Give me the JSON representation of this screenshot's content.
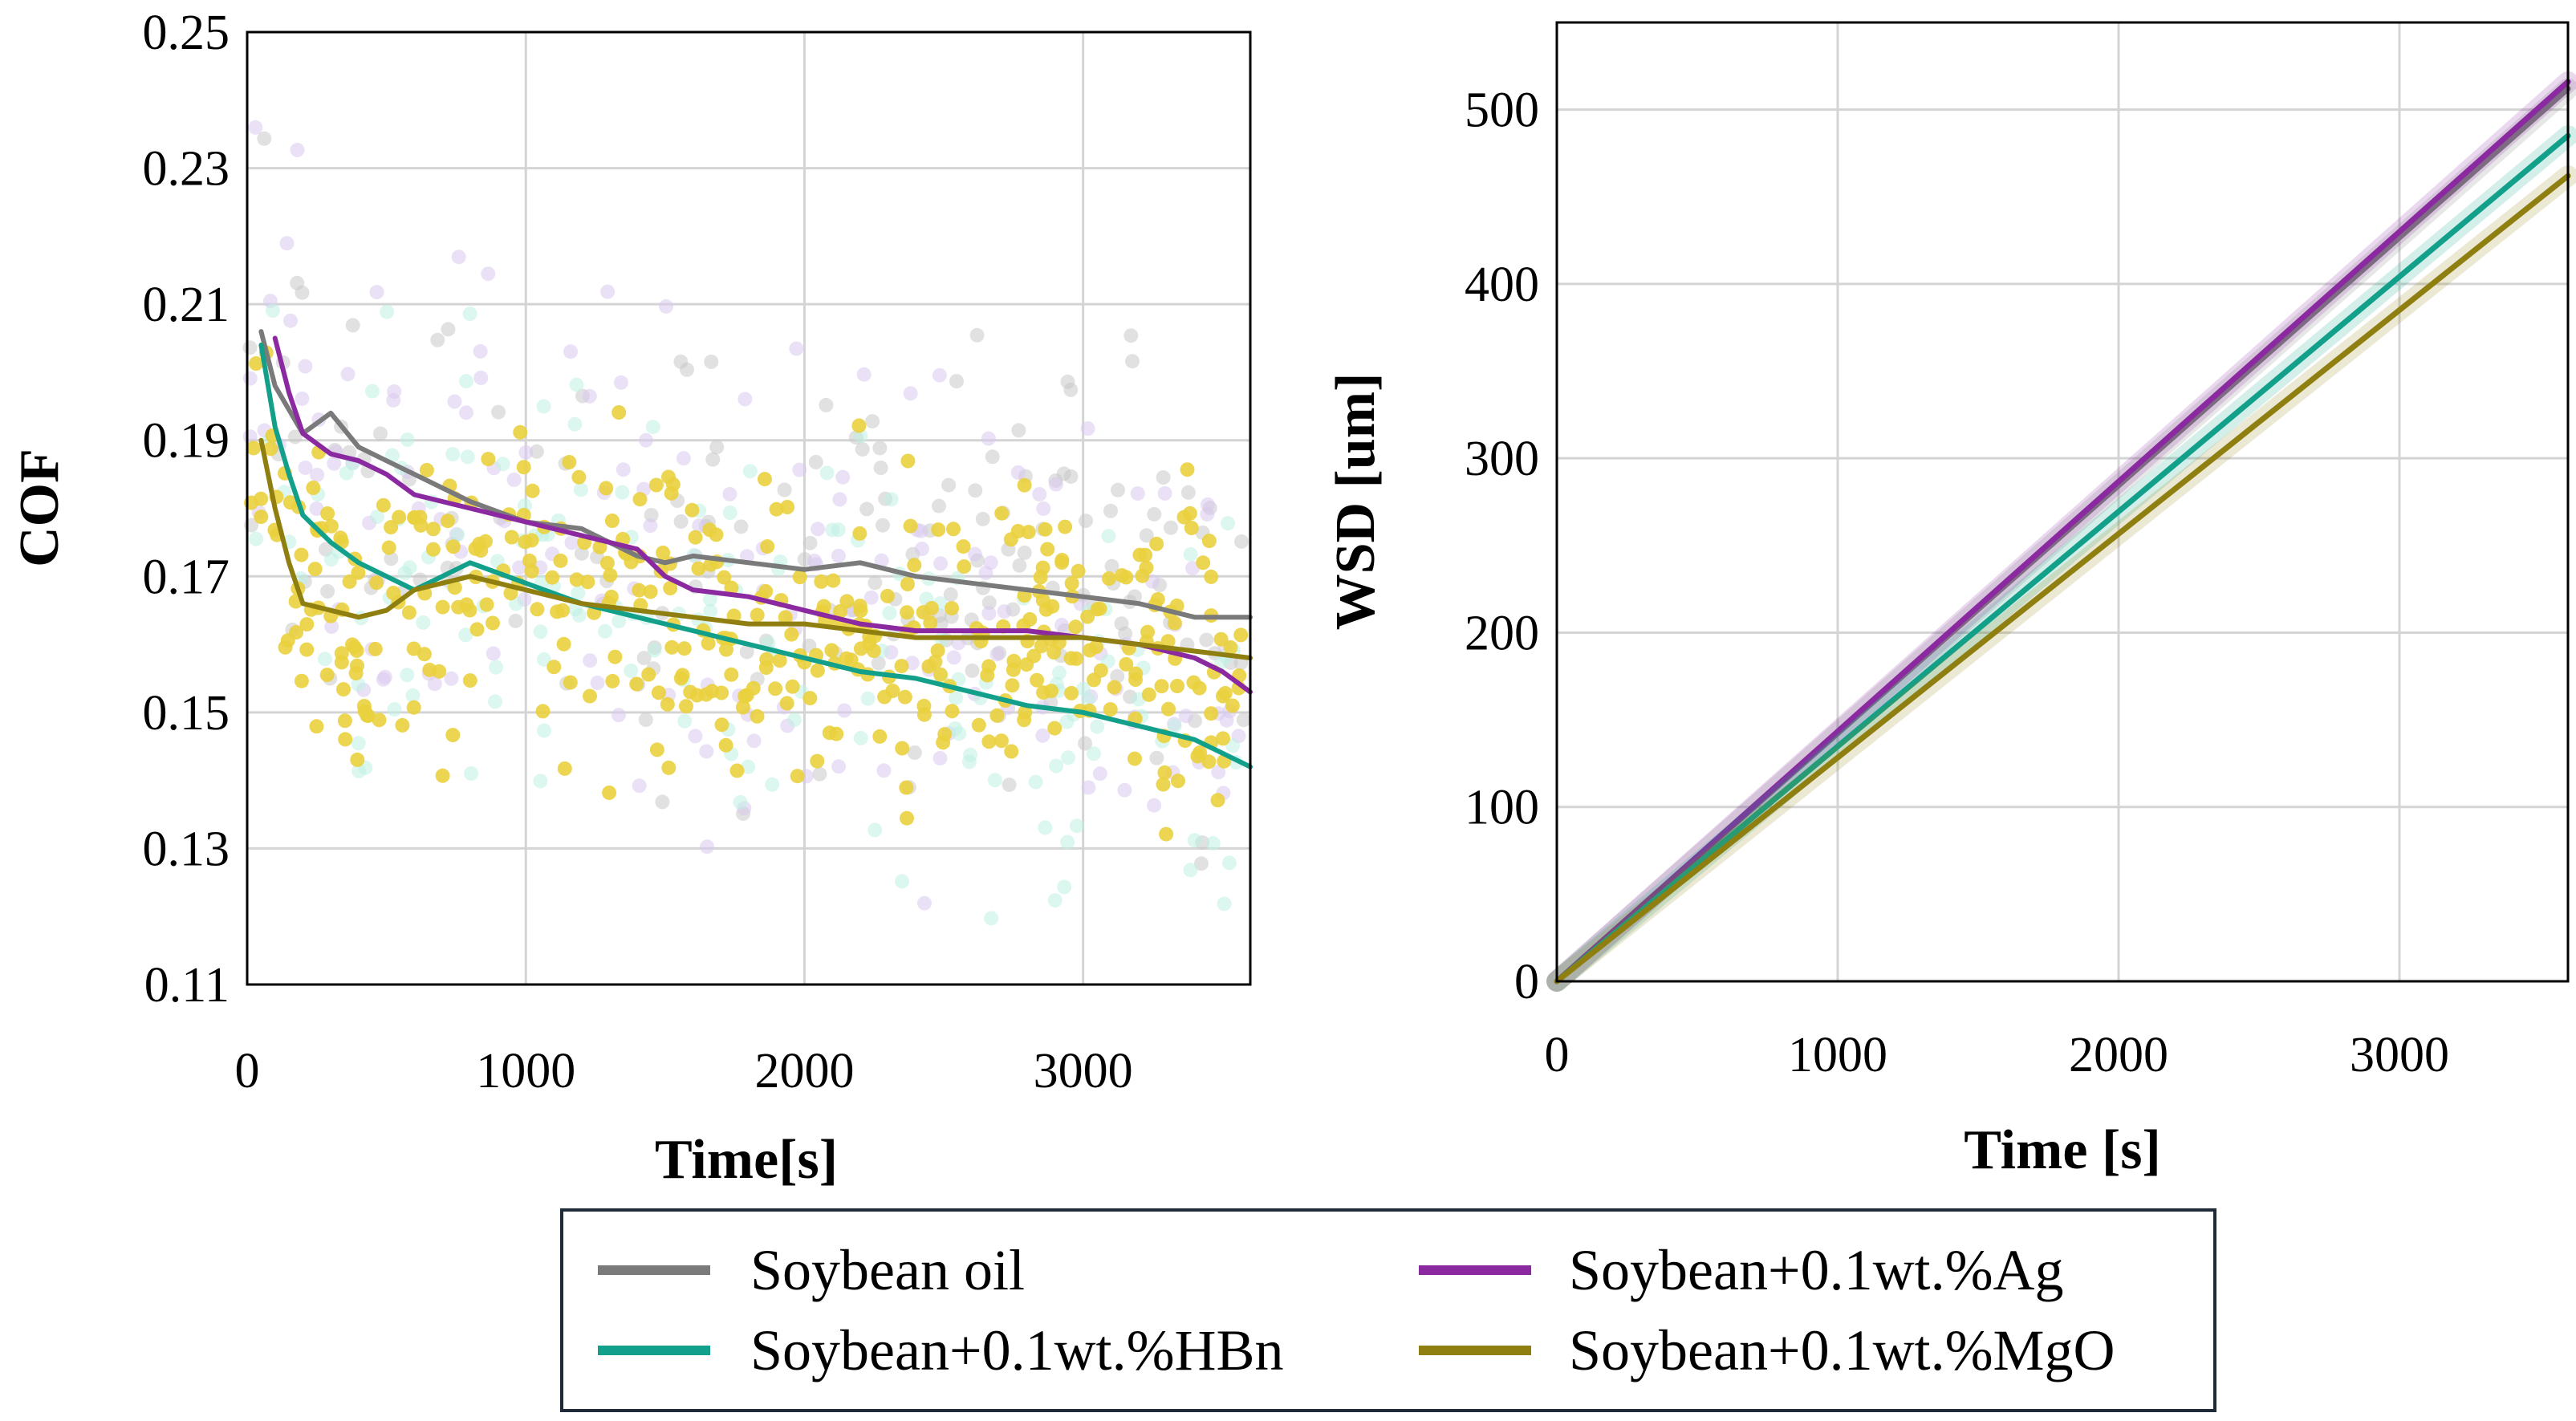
{
  "legend": [
    {
      "key": "soy",
      "label": "Soybean oil",
      "color": "#7a7a7a"
    },
    {
      "key": "ag",
      "label": "Soybean+0.1wt.%Ag",
      "color": "#8b2aa0"
    },
    {
      "key": "hbn",
      "label": "Soybean+0.1wt.%HBn",
      "color": "#12a08a"
    },
    {
      "key": "mgo",
      "label": "Soybean+0.1wt.%MgO",
      "color": "#8f7f10"
    }
  ],
  "chart_data": [
    {
      "id": "cof",
      "type": "line",
      "xlabel": "Time[s]",
      "ylabel": "COF",
      "xlim": [
        0,
        3600
      ],
      "ylim": [
        0.11,
        0.25
      ],
      "xticks": [
        0,
        1000,
        2000,
        3000
      ],
      "yticks": [
        0.11,
        0.13,
        0.15,
        0.17,
        0.19,
        0.21,
        0.23,
        0.25
      ],
      "ytick_labels": [
        "0.11",
        "0.13",
        "0.15",
        "0.17",
        "0.19",
        "0.21",
        "0.23",
        "0.25"
      ],
      "grid": true,
      "scatter_note": "faint scattered raw COF points behind each averaged line; Soybean+0.1wt.%MgO points drawn most prominently",
      "series": [
        {
          "name": "Soybean oil",
          "color": "#7a7a7a",
          "x": [
            50,
            100,
            200,
            300,
            400,
            500,
            600,
            800,
            1000,
            1200,
            1400,
            1500,
            1600,
            1800,
            2000,
            2200,
            2400,
            2600,
            2800,
            3000,
            3200,
            3400,
            3600
          ],
          "y": [
            0.206,
            0.198,
            0.191,
            0.194,
            0.189,
            0.187,
            0.185,
            0.181,
            0.178,
            0.177,
            0.173,
            0.172,
            0.173,
            0.172,
            0.171,
            0.172,
            0.17,
            0.169,
            0.168,
            0.167,
            0.166,
            0.164,
            0.164
          ]
        },
        {
          "name": "Soybean+0.1wt.%Ag",
          "color": "#8b2aa0",
          "x": [
            100,
            150,
            200,
            300,
            400,
            500,
            600,
            800,
            1000,
            1200,
            1400,
            1500,
            1600,
            1800,
            2000,
            2200,
            2400,
            2600,
            2800,
            3000,
            3200,
            3400,
            3500,
            3600
          ],
          "y": [
            0.205,
            0.197,
            0.191,
            0.188,
            0.187,
            0.185,
            0.182,
            0.18,
            0.178,
            0.176,
            0.174,
            0.17,
            0.168,
            0.167,
            0.165,
            0.163,
            0.162,
            0.162,
            0.162,
            0.161,
            0.16,
            0.158,
            0.156,
            0.153
          ]
        },
        {
          "name": "Soybean+0.1wt.%HBn",
          "color": "#12a08a",
          "x": [
            50,
            100,
            150,
            200,
            300,
            400,
            500,
            600,
            700,
            800,
            1000,
            1200,
            1400,
            1600,
            1800,
            2000,
            2200,
            2400,
            2600,
            2800,
            3000,
            3200,
            3400,
            3500,
            3600
          ],
          "y": [
            0.204,
            0.192,
            0.185,
            0.179,
            0.175,
            0.172,
            0.17,
            0.168,
            0.17,
            0.172,
            0.169,
            0.166,
            0.164,
            0.162,
            0.16,
            0.158,
            0.156,
            0.155,
            0.153,
            0.151,
            0.15,
            0.148,
            0.146,
            0.144,
            0.142
          ]
        },
        {
          "name": "Soybean+0.1wt.%MgO",
          "color": "#8f7f10",
          "x": [
            50,
            100,
            150,
            200,
            300,
            400,
            500,
            600,
            700,
            800,
            1000,
            1200,
            1400,
            1600,
            1800,
            2000,
            2200,
            2400,
            2600,
            2800,
            3000,
            3200,
            3400,
            3600
          ],
          "y": [
            0.19,
            0.18,
            0.172,
            0.166,
            0.165,
            0.164,
            0.165,
            0.168,
            0.169,
            0.17,
            0.168,
            0.166,
            0.165,
            0.164,
            0.163,
            0.163,
            0.162,
            0.161,
            0.161,
            0.161,
            0.161,
            0.16,
            0.159,
            0.158
          ]
        }
      ]
    },
    {
      "id": "wsd",
      "type": "line",
      "xlabel": "Time [s]",
      "ylabel": "WSD [um]",
      "xlim": [
        0,
        3600
      ],
      "ylim": [
        0,
        550
      ],
      "xticks": [
        0,
        1000,
        2000,
        3000
      ],
      "yticks": [
        0,
        100,
        200,
        300,
        400,
        500
      ],
      "ytick_labels": [
        "0",
        "100",
        "200",
        "300",
        "400",
        "500"
      ],
      "grid": true,
      "series": [
        {
          "name": "Soybean oil",
          "color": "#7a7a7a",
          "x": [
            0,
            3600
          ],
          "y": [
            0,
            512
          ]
        },
        {
          "name": "Soybean+0.1wt.%Ag",
          "color": "#8b2aa0",
          "x": [
            0,
            3600
          ],
          "y": [
            0,
            516
          ]
        },
        {
          "name": "Soybean+0.1wt.%HBn",
          "color": "#12a08a",
          "x": [
            0,
            3600
          ],
          "y": [
            0,
            485
          ]
        },
        {
          "name": "Soybean+0.1wt.%MgO",
          "color": "#8f7f10",
          "x": [
            0,
            3600
          ],
          "y": [
            0,
            462
          ]
        }
      ]
    }
  ]
}
